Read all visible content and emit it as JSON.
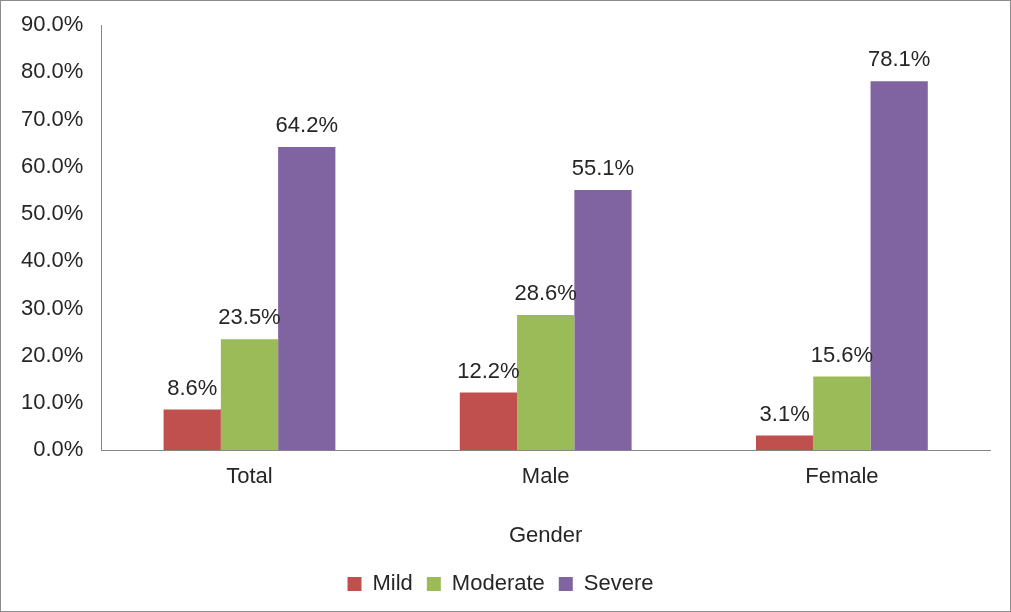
{
  "chart_data": {
    "type": "bar",
    "xlabel": "Gender",
    "categories": [
      "Total",
      "Male",
      "Female"
    ],
    "series": [
      {
        "name": "Mild",
        "color": "#c0504d",
        "values": [
          8.6,
          12.2,
          3.1
        ],
        "value_labels": [
          "8.6%",
          "12.2%",
          "3.1%"
        ]
      },
      {
        "name": "Moderate",
        "color": "#9bbb59",
        "values": [
          23.5,
          28.6,
          15.6
        ],
        "value_labels": [
          "23.5%",
          "28.6%",
          "15.6%"
        ]
      },
      {
        "name": "Severe",
        "color": "#8064a2",
        "values": [
          64.2,
          55.1,
          78.1
        ],
        "value_labels": [
          "64.2%",
          "55.1%",
          "78.1%"
        ]
      }
    ],
    "ylim": [
      0,
      90
    ],
    "yticks": [
      {
        "value": 0,
        "label": "0.0%"
      },
      {
        "value": 10,
        "label": "10.0%"
      },
      {
        "value": 20,
        "label": "20.0%"
      },
      {
        "value": 30,
        "label": "30.0%"
      },
      {
        "value": 40,
        "label": "40.0%"
      },
      {
        "value": 50,
        "label": "50.0%"
      },
      {
        "value": 60,
        "label": "60.0%"
      },
      {
        "value": 70,
        "label": "70.0%"
      },
      {
        "value": 80,
        "label": "80.0%"
      },
      {
        "value": 90,
        "label": "90.0%"
      }
    ],
    "grid": false,
    "legend": "bottom",
    "data_labels": true
  }
}
